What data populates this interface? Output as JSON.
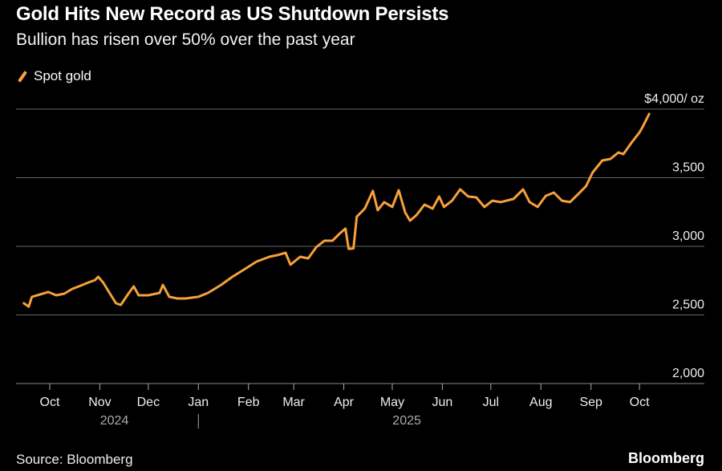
{
  "chart_data": {
    "type": "line",
    "title": "Gold Hits New Record as US Shutdown Persists",
    "subtitle": "Bullion has risen over 50% over the past year",
    "xlabel": "",
    "ylabel": "",
    "unit_label": "$4,000/ oz",
    "ylim": [
      2000,
      4000
    ],
    "yticks": [
      {
        "value": 3500,
        "label": "3,500"
      },
      {
        "value": 3000,
        "label": "3,000"
      },
      {
        "value": 2500,
        "label": "2,500"
      },
      {
        "value": 2000,
        "label": "2,000"
      }
    ],
    "xticks": [
      {
        "date": "2024-10-01",
        "label": "Oct"
      },
      {
        "date": "2024-11-01",
        "label": "Nov"
      },
      {
        "date": "2024-12-01",
        "label": "Dec"
      },
      {
        "date": "2025-01-01",
        "label": "Jan"
      },
      {
        "date": "2025-02-01",
        "label": "Feb"
      },
      {
        "date": "2025-03-01",
        "label": "Mar"
      },
      {
        "date": "2025-04-01",
        "label": "Apr"
      },
      {
        "date": "2025-05-01",
        "label": "May"
      },
      {
        "date": "2025-06-01",
        "label": "Jun"
      },
      {
        "date": "2025-07-01",
        "label": "Jul"
      },
      {
        "date": "2025-08-01",
        "label": "Aug"
      },
      {
        "date": "2025-09-01",
        "label": "Sep"
      },
      {
        "date": "2025-10-01",
        "label": "Oct"
      }
    ],
    "years": [
      {
        "date": "2024-11-10",
        "label": "2024"
      },
      {
        "date": "2025-05-10",
        "label": "2025"
      }
    ],
    "year_divider": "2025-01-01",
    "grid": true,
    "legend_position": "top-left",
    "series": [
      {
        "name": "Spot gold",
        "color": "#f7a03c",
        "points": [
          [
            "2024-09-15",
            2585
          ],
          [
            "2024-09-18",
            2561
          ],
          [
            "2024-09-20",
            2632
          ],
          [
            "2024-09-25",
            2649
          ],
          [
            "2024-09-30",
            2667
          ],
          [
            "2024-10-05",
            2643
          ],
          [
            "2024-10-10",
            2655
          ],
          [
            "2024-10-15",
            2690
          ],
          [
            "2024-10-20",
            2713
          ],
          [
            "2024-10-25",
            2737
          ],
          [
            "2024-10-29",
            2754
          ],
          [
            "2024-10-31",
            2778
          ],
          [
            "2024-11-03",
            2737
          ],
          [
            "2024-11-07",
            2661
          ],
          [
            "2024-11-11",
            2585
          ],
          [
            "2024-11-14",
            2573
          ],
          [
            "2024-11-19",
            2661
          ],
          [
            "2024-11-22",
            2708
          ],
          [
            "2024-11-25",
            2643
          ],
          [
            "2024-12-01",
            2643
          ],
          [
            "2024-12-08",
            2661
          ],
          [
            "2024-12-10",
            2719
          ],
          [
            "2024-12-14",
            2632
          ],
          [
            "2024-12-19",
            2620
          ],
          [
            "2024-12-24",
            2620
          ],
          [
            "2025-01-01",
            2632
          ],
          [
            "2025-01-07",
            2661
          ],
          [
            "2025-01-15",
            2719
          ],
          [
            "2025-01-22",
            2778
          ],
          [
            "2025-01-30",
            2836
          ],
          [
            "2025-02-06",
            2889
          ],
          [
            "2025-02-14",
            2924
          ],
          [
            "2025-02-19",
            2936
          ],
          [
            "2025-02-24",
            2953
          ],
          [
            "2025-02-27",
            2866
          ],
          [
            "2025-03-05",
            2924
          ],
          [
            "2025-03-10",
            2912
          ],
          [
            "2025-03-15",
            2994
          ],
          [
            "2025-03-20",
            3041
          ],
          [
            "2025-03-25",
            3041
          ],
          [
            "2025-03-30",
            3099
          ],
          [
            "2025-04-02",
            3129
          ],
          [
            "2025-04-04",
            2982
          ],
          [
            "2025-04-07",
            2985
          ],
          [
            "2025-04-09",
            3216
          ],
          [
            "2025-04-14",
            3275
          ],
          [
            "2025-04-19",
            3404
          ],
          [
            "2025-04-22",
            3263
          ],
          [
            "2025-04-26",
            3322
          ],
          [
            "2025-05-01",
            3287
          ],
          [
            "2025-05-05",
            3409
          ],
          [
            "2025-05-09",
            3246
          ],
          [
            "2025-05-12",
            3187
          ],
          [
            "2025-05-16",
            3228
          ],
          [
            "2025-05-21",
            3304
          ],
          [
            "2025-05-26",
            3275
          ],
          [
            "2025-05-30",
            3363
          ],
          [
            "2025-06-02",
            3287
          ],
          [
            "2025-06-07",
            3333
          ],
          [
            "2025-06-12",
            3415
          ],
          [
            "2025-06-17",
            3363
          ],
          [
            "2025-06-22",
            3357
          ],
          [
            "2025-06-27",
            3287
          ],
          [
            "2025-07-02",
            3333
          ],
          [
            "2025-07-07",
            3322
          ],
          [
            "2025-07-15",
            3345
          ],
          [
            "2025-07-21",
            3415
          ],
          [
            "2025-07-25",
            3322
          ],
          [
            "2025-07-30",
            3287
          ],
          [
            "2025-08-04",
            3368
          ],
          [
            "2025-08-09",
            3392
          ],
          [
            "2025-08-14",
            3333
          ],
          [
            "2025-08-19",
            3322
          ],
          [
            "2025-08-24",
            3380
          ],
          [
            "2025-08-29",
            3439
          ],
          [
            "2025-09-02",
            3538
          ],
          [
            "2025-09-08",
            3626
          ],
          [
            "2025-09-13",
            3637
          ],
          [
            "2025-09-18",
            3684
          ],
          [
            "2025-09-21",
            3672
          ],
          [
            "2025-09-26",
            3754
          ],
          [
            "2025-10-01",
            3830
          ],
          [
            "2025-10-03",
            3871
          ],
          [
            "2025-10-07",
            3965
          ]
        ]
      }
    ]
  },
  "legend": {
    "label": "Spot gold"
  },
  "footer": {
    "source": "Source: Bloomberg",
    "brand": "Bloomberg"
  }
}
